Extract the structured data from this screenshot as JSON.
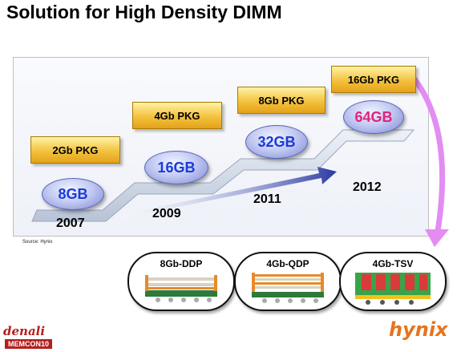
{
  "title": "Solution for High Density DIMM",
  "roadmap": [
    {
      "year": "2007",
      "package": "2Gb PKG",
      "capacity": "8GB",
      "highlight": false
    },
    {
      "year": "2009",
      "package": "4Gb PKG",
      "capacity": "16GB",
      "highlight": false
    },
    {
      "year": "2011",
      "package": "8Gb PKG",
      "capacity": "32GB",
      "highlight": false
    },
    {
      "year": "2012",
      "package": "16Gb PKG",
      "capacity": "64GB",
      "highlight": true
    }
  ],
  "source": "Source:  Hynix",
  "cross_sections": [
    {
      "label": "8Gb-DDP"
    },
    {
      "label": "4Gb-QDP"
    },
    {
      "label": "4Gb-TSV"
    }
  ],
  "logos": {
    "denali": "denali",
    "memcon": "MEMCON10",
    "hynix": "hynix"
  },
  "colors": {
    "package_box": "#f3c23e",
    "capacity_text": "#1a3bd8",
    "highlight_text": "#e0247d",
    "curve_arrow": "#e38cf2",
    "trend_arrow": "#2a3aa0"
  }
}
